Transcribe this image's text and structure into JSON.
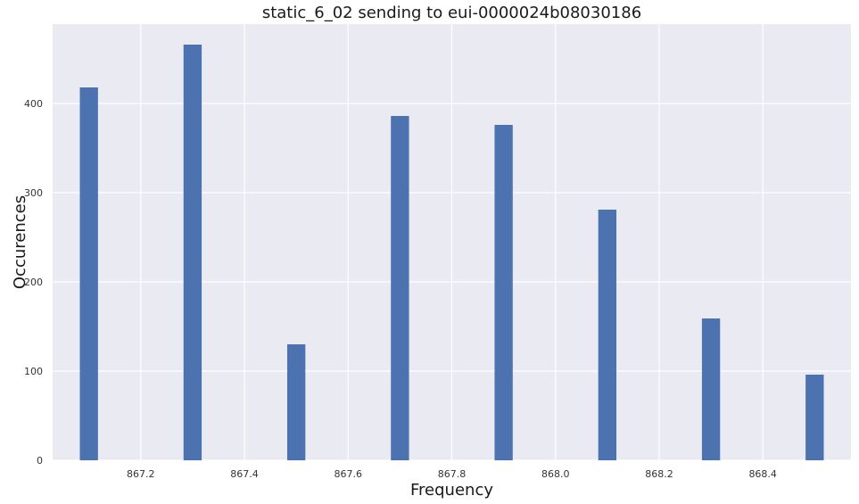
{
  "chart_data": {
    "type": "bar",
    "title": "static_6_02 sending to eui-0000024b08030186",
    "xlabel": "Frequency",
    "ylabel": "Occurences",
    "xlim": [
      867.03,
      868.57
    ],
    "ylim": [
      0,
      489
    ],
    "x_ticks": [
      867.2,
      867.4,
      867.6,
      867.8,
      868.0,
      868.2,
      868.4
    ],
    "x_tick_labels": [
      "867.2",
      "867.4",
      "867.6",
      "867.8",
      "868.0",
      "868.2",
      "868.4"
    ],
    "y_ticks": [
      0,
      100,
      200,
      300,
      400
    ],
    "y_tick_labels": [
      "0",
      "100",
      "200",
      "300",
      "400"
    ],
    "bin_width": 0.035,
    "bars": [
      {
        "x": 867.1,
        "value": 418
      },
      {
        "x": 867.3,
        "value": 466
      },
      {
        "x": 867.5,
        "value": 130
      },
      {
        "x": 867.7,
        "value": 386
      },
      {
        "x": 867.9,
        "value": 376
      },
      {
        "x": 868.1,
        "value": 281
      },
      {
        "x": 868.3,
        "value": 159
      },
      {
        "x": 868.5,
        "value": 96
      }
    ],
    "grid": true,
    "colors": {
      "bar": "#4c72b0",
      "plot_background": "#eaeaf2",
      "grid": "#ffffff"
    }
  }
}
